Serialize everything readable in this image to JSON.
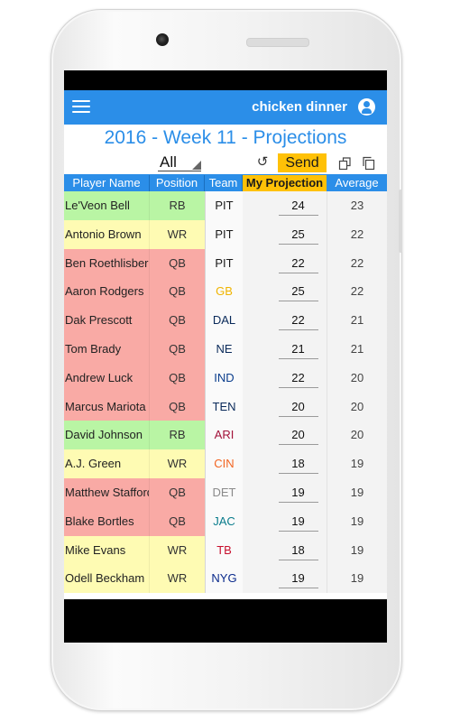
{
  "app_bar": {
    "title": "chicken dinner",
    "menu_icon": "hamburger-menu-icon",
    "account_icon": "account-circle-icon"
  },
  "page": {
    "title": "2016 - Week 11 - Projections"
  },
  "toolbar": {
    "filter_value": "All",
    "undo_icon": "undo-icon",
    "send_label": "Send",
    "copy_icons": [
      "copy-icon",
      "paste-icon"
    ]
  },
  "columns": [
    "Player Name",
    "Position",
    "Team",
    "My Projection",
    "Average"
  ],
  "colors": {
    "accent": "#2b8ee8",
    "highlight": "#ffc107",
    "position": {
      "RB": "#b9f5a4",
      "WR": "#fefbb3",
      "QB": "#f9aaa5"
    }
  },
  "players": [
    {
      "name": "Le'Veon Bell",
      "position": "RB",
      "team": "PIT",
      "team_color": "#1a1a1a",
      "projection": "24",
      "average": "23"
    },
    {
      "name": "Antonio Brown",
      "position": "WR",
      "team": "PIT",
      "team_color": "#1a1a1a",
      "projection": "25",
      "average": "22"
    },
    {
      "name": "Ben Roethlisberger",
      "position": "QB",
      "team": "PIT",
      "team_color": "#1a1a1a",
      "projection": "22",
      "average": "22"
    },
    {
      "name": "Aaron Rodgers",
      "position": "QB",
      "team": "GB",
      "team_color": "#f0b400",
      "projection": "25",
      "average": "22"
    },
    {
      "name": "Dak Prescott",
      "position": "QB",
      "team": "DAL",
      "team_color": "#0a2a5a",
      "projection": "22",
      "average": "21"
    },
    {
      "name": "Tom Brady",
      "position": "QB",
      "team": "NE",
      "team_color": "#0a2a5a",
      "projection": "21",
      "average": "21"
    },
    {
      "name": "Andrew Luck",
      "position": "QB",
      "team": "IND",
      "team_color": "#0a3d8c",
      "projection": "22",
      "average": "20"
    },
    {
      "name": "Marcus Mariota",
      "position": "QB",
      "team": "TEN",
      "team_color": "#0a2a5a",
      "projection": "20",
      "average": "20"
    },
    {
      "name": "David Johnson",
      "position": "RB",
      "team": "ARI",
      "team_color": "#a3123a",
      "projection": "20",
      "average": "20"
    },
    {
      "name": "A.J. Green",
      "position": "WR",
      "team": "CIN",
      "team_color": "#f26522",
      "projection": "18",
      "average": "19"
    },
    {
      "name": "Matthew Stafford",
      "position": "QB",
      "team": "DET",
      "team_color": "#8a8a8a",
      "projection": "19",
      "average": "19"
    },
    {
      "name": "Blake Bortles",
      "position": "QB",
      "team": "JAC",
      "team_color": "#0a7c8c",
      "projection": "19",
      "average": "19"
    },
    {
      "name": "Mike Evans",
      "position": "WR",
      "team": "TB",
      "team_color": "#c8102e",
      "projection": "18",
      "average": "19"
    },
    {
      "name": "Odell Beckham",
      "position": "WR",
      "team": "NYG",
      "team_color": "#0a2a8c",
      "projection": "19",
      "average": "19"
    }
  ]
}
